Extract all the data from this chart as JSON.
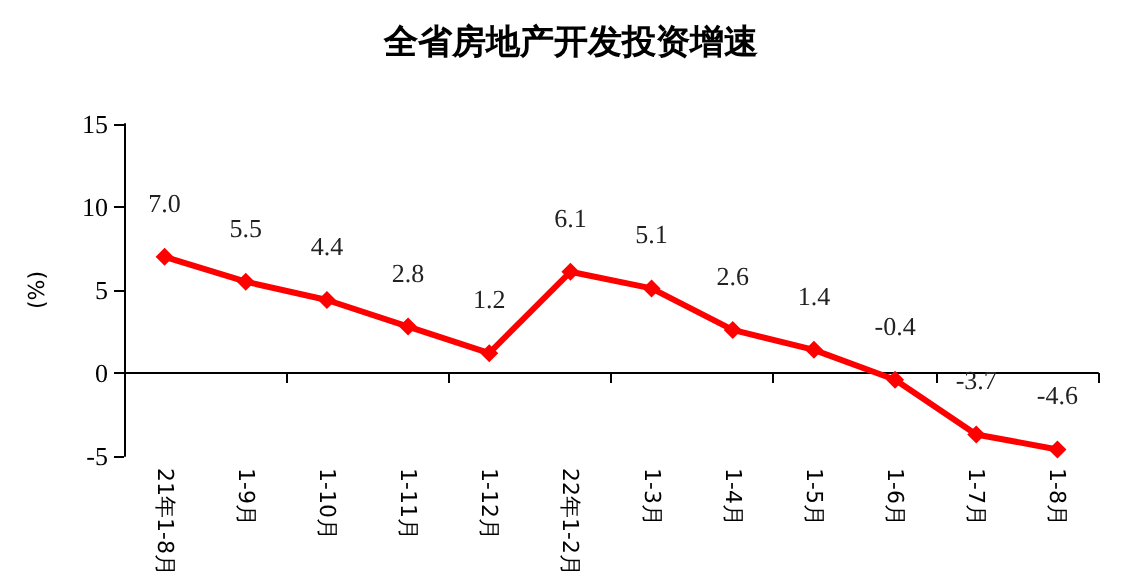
{
  "chart_data": {
    "type": "line",
    "title": "全省房地产开发投资增速",
    "ylabel": "(%)",
    "categories": [
      "21年1-8月",
      "1-9月",
      "1-10月",
      "1-11月",
      "1-12月",
      "22年1-2月",
      "1-3月",
      "1-4月",
      "1-5月",
      "1-6月",
      "1-7月",
      "1-8月"
    ],
    "series": [
      {
        "color": "#ff0000",
        "values": [
          7.0,
          5.5,
          4.4,
          2.8,
          1.2,
          6.1,
          5.1,
          2.6,
          1.4,
          -0.4,
          -3.7,
          -4.6
        ],
        "value_labels": [
          "7.0",
          "5.5",
          "4.4",
          "2.8",
          "1.2",
          "6.1",
          "5.1",
          "2.6",
          "1.4",
          "-0.4",
          "-3.7",
          "-4.6"
        ]
      }
    ],
    "ylim": [
      -5,
      15
    ],
    "yticks": [
      -5,
      0,
      5,
      10,
      15
    ],
    "marker": "diamond",
    "line_style": "solid"
  }
}
